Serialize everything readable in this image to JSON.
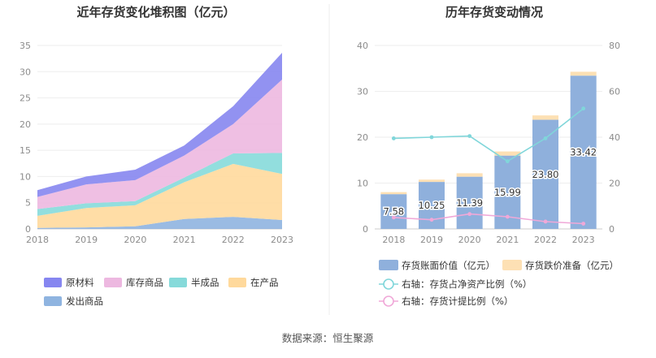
{
  "footer": {
    "source": "数据来源：恒生聚源"
  },
  "colors": {
    "raw_material": "#8686f0",
    "goods_in_stock": "#edb8e0",
    "semi_finished": "#86dada",
    "wip": "#ffd99c",
    "goods_shipped": "#8fb4e0",
    "book_value": "#8fb0dc",
    "impairment": "#fde0b4",
    "ratio_line": "#80d6da",
    "provision_line": "#f0a8d8"
  },
  "chart_data": [
    {
      "type": "area",
      "stacked": true,
      "title": "近年存货变化堆积图（亿元）",
      "x": [
        "2018",
        "2019",
        "2020",
        "2021",
        "2022",
        "2023"
      ],
      "ylim": [
        0,
        35
      ],
      "yticks": [
        0,
        5,
        10,
        15,
        20,
        25,
        30,
        35
      ],
      "grid": true,
      "legend_position": "bottom",
      "series": [
        {
          "name": "发出商品",
          "key": "goods_shipped",
          "values": [
            0.2,
            0.3,
            0.5,
            1.9,
            2.3,
            1.7
          ]
        },
        {
          "name": "在产品",
          "key": "wip",
          "values": [
            2.3,
            3.7,
            4.0,
            7.0,
            10.1,
            8.8
          ]
        },
        {
          "name": "半成品",
          "key": "semi_finished",
          "values": [
            1.3,
            0.9,
            0.8,
            0.9,
            2.0,
            4.0
          ]
        },
        {
          "name": "库存商品",
          "key": "goods_in_stock",
          "values": [
            2.3,
            3.6,
            4.0,
            4.2,
            5.6,
            14.0
          ]
        },
        {
          "name": "原材料",
          "key": "raw_material",
          "values": [
            1.3,
            1.5,
            2.0,
            1.9,
            3.4,
            5.1
          ]
        }
      ],
      "legend_order": [
        "原材料",
        "库存商品",
        "半成品",
        "在产品",
        "发出商品"
      ]
    },
    {
      "type": "bar",
      "stacked": true,
      "title": "历年存货变动情况",
      "categories": [
        "2018",
        "2019",
        "2020",
        "2021",
        "2022",
        "2023"
      ],
      "ylim": [
        0,
        40
      ],
      "yticks": [
        0,
        10,
        20,
        30,
        40
      ],
      "y2lim": [
        0,
        80
      ],
      "y2ticks": [
        0,
        20,
        40,
        60,
        80
      ],
      "grid": true,
      "legend_position": "bottom",
      "series": [
        {
          "name": "存货账面价值（亿元）",
          "key": "book_value",
          "axis": "left",
          "values": [
            7.58,
            10.25,
            11.39,
            15.99,
            23.8,
            33.42
          ],
          "labels": [
            "7.58",
            "10.25",
            "11.39",
            "15.99",
            "23.80",
            "33.42"
          ]
        },
        {
          "name": "存货跌价准备（亿元）",
          "key": "impairment",
          "axis": "left",
          "values": [
            0.45,
            0.5,
            0.75,
            0.9,
            0.95,
            0.85
          ]
        },
        {
          "name": "右轴：存货占净资产比例（%）",
          "key": "ratio_line",
          "type": "line",
          "axis": "right",
          "values": [
            39.5,
            40.0,
            40.5,
            29.5,
            39.5,
            52.5
          ]
        },
        {
          "name": "右轴：存货计提比例（%）",
          "key": "provision_line",
          "type": "line",
          "axis": "right",
          "values": [
            5.0,
            4.0,
            6.5,
            5.3,
            3.2,
            2.3
          ]
        }
      ]
    }
  ]
}
